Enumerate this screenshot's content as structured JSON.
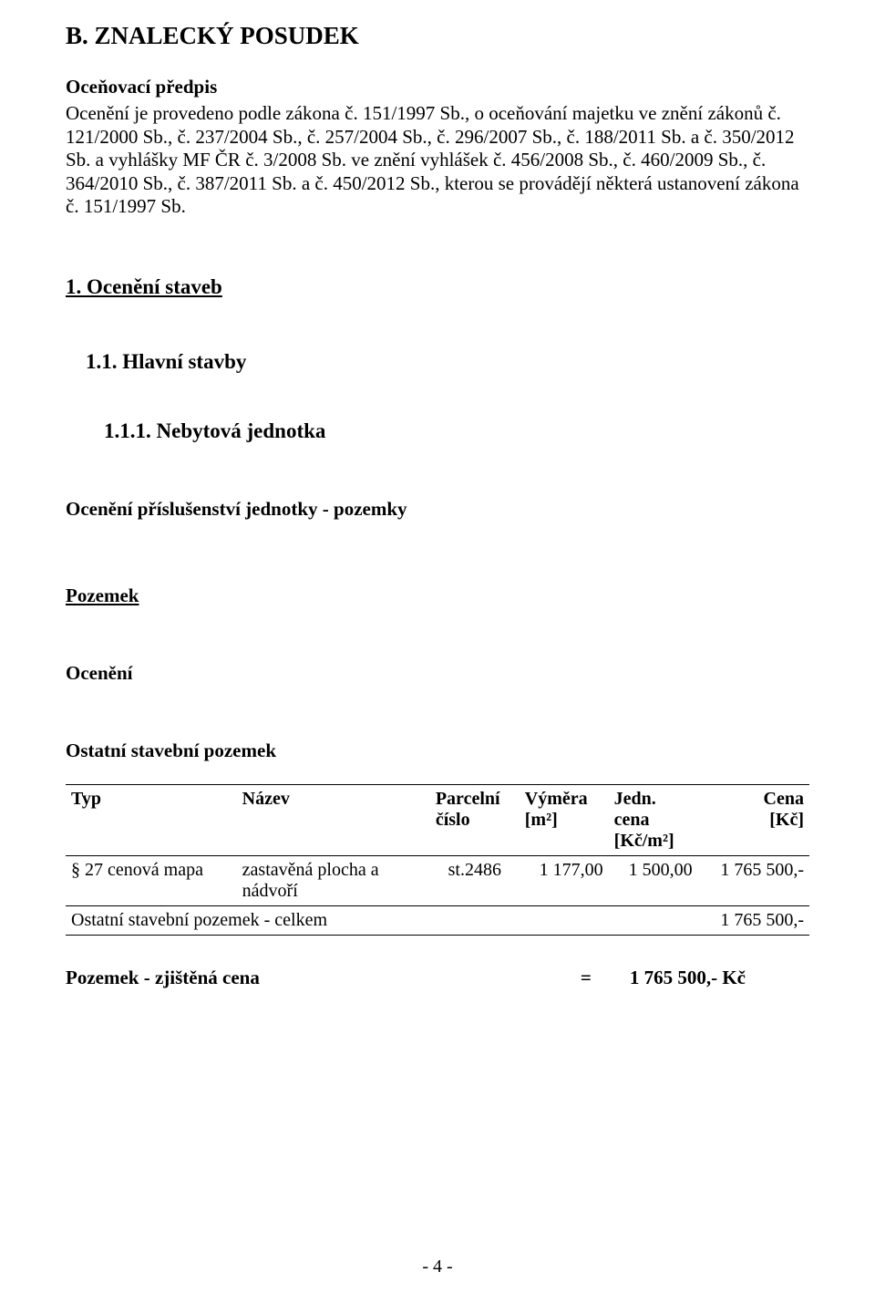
{
  "doc": {
    "section_title": "B. ZNALECKÝ POSUDEK",
    "pricing_heading": "Oceňovací předpis",
    "pricing_text": "Ocenění je provedeno podle zákona č. 151/1997 Sb., o oceňování majetku ve znění zákonů č. 121/2000 Sb., č. 237/2004 Sb., č. 257/2004 Sb., č. 296/2007 Sb., č. 188/2011 Sb. a č. 350/2012 Sb. a vyhlášky MF ČR č. 3/2008 Sb. ve znění vyhlášek č. 456/2008 Sb., č. 460/2009 Sb., č. 364/2010 Sb., č. 387/2011 Sb. a č. 450/2012 Sb., kterou se provádějí některá ustanovení zákona č. 151/1997 Sb.",
    "h1": "1. Ocenění staveb",
    "h11": "1.1. Hlavní stavby",
    "h111": "1.1.1. Nebytová jednotka",
    "acc_heading": "Ocenění příslušenství jednotky - pozemky",
    "pozemek_heading": "Pozemek",
    "oceneni_heading": "Ocenění",
    "ostatni_heading": "Ostatní stavební pozemek"
  },
  "table": {
    "cols": {
      "typ": {
        "l1": "Typ",
        "l2": ""
      },
      "nazev": {
        "l1": "Název",
        "l2": ""
      },
      "parc": {
        "l1": "Parcelní",
        "l2": "číslo"
      },
      "vym": {
        "l1": "Výměra",
        "l2": "[m²]"
      },
      "jedn": {
        "l1": "Jedn. cena",
        "l2": "[Kč/m²]"
      },
      "cena": {
        "l1": "Cena",
        "l2": "[Kč]"
      }
    },
    "row": {
      "typ": "§ 27 cenová mapa",
      "nazev1": "zastavěná plocha a",
      "nazev2": "nádvoří",
      "parc": "st.2486",
      "vym": "1 177,00",
      "jedn": "1 500,00",
      "cena": "1 765 500,-"
    },
    "total_label": "Ostatní stavební pozemek - celkem",
    "total_value": "1 765 500,-"
  },
  "result": {
    "label": "Pozemek - zjištěná cena",
    "eq": "=",
    "value": "1 765 500,- Kč"
  },
  "footer": "- 4 -"
}
